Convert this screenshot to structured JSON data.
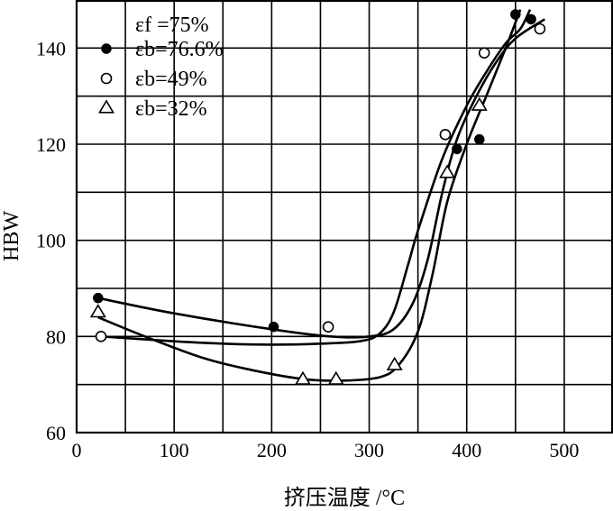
{
  "chart_data": {
    "type": "scatter",
    "title": "",
    "xlabel": "挤压温度 /°C",
    "ylabel": "HBW",
    "xlim": [
      0,
      550
    ],
    "ylim": [
      60,
      150
    ],
    "xticks": [
      "0",
      "100",
      "200",
      "300",
      "400",
      "500"
    ],
    "yticks": [
      "60",
      "80",
      "100",
      "120",
      "140"
    ],
    "x_tick_values": [
      0,
      100,
      200,
      300,
      400,
      500
    ],
    "y_tick_values": [
      60,
      80,
      100,
      120,
      140
    ],
    "grid": true,
    "legend_header": "εf =75%",
    "legend_position": "top-left",
    "series": [
      {
        "name": "εb=76.6%",
        "marker": "filled-circle",
        "points": [
          [
            22,
            88
          ],
          [
            202,
            82
          ],
          [
            390,
            119
          ],
          [
            413,
            121
          ],
          [
            450,
            147
          ],
          [
            466,
            146
          ]
        ],
        "curve": [
          [
            22,
            88
          ],
          [
            100,
            84.8
          ],
          [
            200,
            81.5
          ],
          [
            260,
            80
          ],
          [
            300,
            80
          ],
          [
            325,
            81.5
          ],
          [
            345,
            87
          ],
          [
            360,
            96
          ],
          [
            375,
            110
          ],
          [
            390,
            121
          ],
          [
            410,
            130
          ],
          [
            430,
            137
          ],
          [
            450,
            142
          ],
          [
            480,
            146
          ]
        ]
      },
      {
        "name": "εb=49%",
        "marker": "open-circle",
        "points": [
          [
            25,
            80
          ],
          [
            258,
            82
          ],
          [
            378,
            122
          ],
          [
            418,
            139
          ],
          [
            475,
            144
          ]
        ],
        "curve": [
          [
            25,
            80
          ],
          [
            100,
            79
          ],
          [
            150,
            78.5
          ],
          [
            200,
            78.3
          ],
          [
            250,
            78.5
          ],
          [
            290,
            79
          ],
          [
            310,
            80.5
          ],
          [
            325,
            85
          ],
          [
            340,
            95
          ],
          [
            350,
            102
          ],
          [
            375,
            117
          ],
          [
            400,
            128
          ],
          [
            420,
            135
          ],
          [
            440,
            141
          ],
          [
            455,
            144
          ],
          [
            465,
            148
          ]
        ]
      },
      {
        "name": "εb=32%",
        "marker": "open-triangle",
        "points": [
          [
            22,
            85
          ],
          [
            232,
            71
          ],
          [
            266,
            71
          ],
          [
            326,
            74
          ],
          [
            380,
            114
          ],
          [
            413,
            128
          ]
        ],
        "curve": [
          [
            22,
            84
          ],
          [
            70,
            80
          ],
          [
            130,
            75.5
          ],
          [
            180,
            73
          ],
          [
            230,
            71.2
          ],
          [
            270,
            70.8
          ],
          [
            310,
            71.5
          ],
          [
            330,
            74
          ],
          [
            350,
            81
          ],
          [
            365,
            93
          ],
          [
            380,
            108
          ],
          [
            400,
            120
          ],
          [
            420,
            130
          ],
          [
            440,
            140
          ],
          [
            455,
            148
          ]
        ]
      }
    ]
  }
}
